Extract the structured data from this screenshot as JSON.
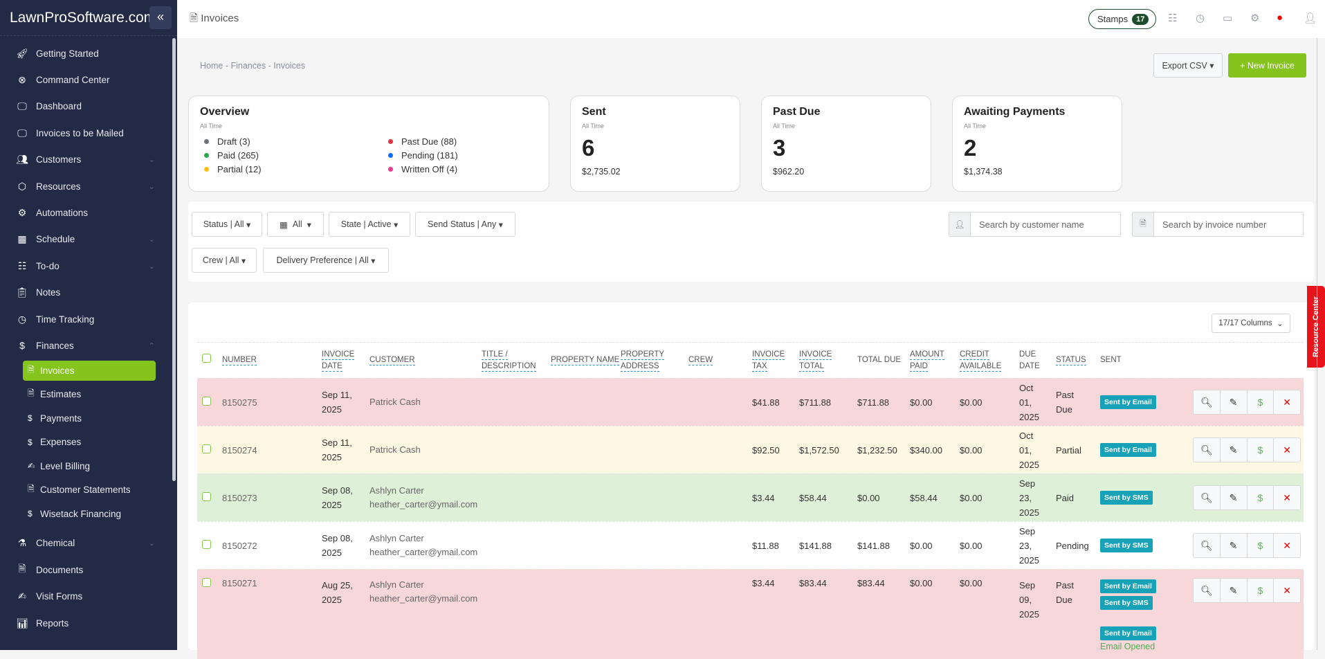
{
  "sidebar": {
    "brand": "LawnProSoftware.com",
    "items": [
      {
        "label": "Getting Started",
        "icon": "rocket-icon"
      },
      {
        "label": "Command Center",
        "icon": "lifebuoy-icon"
      },
      {
        "label": "Dashboard",
        "icon": "monitor-icon"
      },
      {
        "label": "Invoices to be Mailed",
        "icon": "monitor-icon"
      },
      {
        "label": "Customers",
        "icon": "users-icon"
      },
      {
        "label": "Resources",
        "icon": "box-icon"
      },
      {
        "label": "Automations",
        "icon": "gears-icon"
      },
      {
        "label": "Schedule",
        "icon": "calendar-icon"
      },
      {
        "label": "To-do",
        "icon": "checklist-icon"
      },
      {
        "label": "Notes",
        "icon": "clipboard-icon"
      },
      {
        "label": "Time Tracking",
        "icon": "clock-icon"
      },
      {
        "label": "Finances",
        "icon": "dollar-icon"
      }
    ],
    "finances_sub": [
      {
        "label": "Invoices",
        "icon": "invoice-icon",
        "active": true
      },
      {
        "label": "Estimates",
        "icon": "document-icon"
      },
      {
        "label": "Payments",
        "icon": "dollar-icon"
      },
      {
        "label": "Expenses",
        "icon": "dollar-icon"
      },
      {
        "label": "Level Billing",
        "icon": "signature-icon"
      },
      {
        "label": "Customer Statements",
        "icon": "document-icon"
      },
      {
        "label": "Wisetack Financing",
        "icon": "dollar-icon"
      }
    ],
    "items_after": [
      {
        "label": "Chemical",
        "icon": "flask-icon"
      },
      {
        "label": "Documents",
        "icon": "document-icon"
      },
      {
        "label": "Visit Forms",
        "icon": "signature-icon"
      },
      {
        "label": "Reports",
        "icon": "chart-icon"
      }
    ]
  },
  "topbar": {
    "title": "Invoices",
    "stamps_label": "Stamps",
    "stamps_count": "17"
  },
  "breadcrumb": "Home - Finances - Invoices",
  "actions": {
    "export": "Export CSV",
    "new_invoice": "+ New Invoice"
  },
  "overview": {
    "title": "Overview",
    "subtitle": "All Time",
    "legend": [
      {
        "label": "Draft (3)",
        "color": "#6c757d"
      },
      {
        "label": "Past Due (88)",
        "color": "#dc3545"
      },
      {
        "label": "Paid (265)",
        "color": "#28a745"
      },
      {
        "label": "Pending (181)",
        "color": "#0d6efd"
      },
      {
        "label": "Partial (12)",
        "color": "#ffc107"
      },
      {
        "label": "Written Off (4)",
        "color": "#e83e8c"
      }
    ]
  },
  "cards": [
    {
      "title": "Sent",
      "subtitle": "All Time",
      "count": "6",
      "amount": "$2,735.02"
    },
    {
      "title": "Past Due",
      "subtitle": "All Time",
      "count": "3",
      "amount": "$962.20"
    },
    {
      "title": "Awaiting Payments",
      "subtitle": "All Time",
      "count": "2",
      "amount": "$1,374.38"
    }
  ],
  "filters": {
    "status": "Status | All",
    "date": "All",
    "state": "State | Active",
    "send_status": "Send Status | Any",
    "crew": "Crew | All",
    "delivery": "Delivery Preference | All",
    "customer_placeholder": "Search by customer name",
    "invoice_placeholder": "Search by invoice number"
  },
  "table": {
    "columns_label": "17/17 Columns",
    "headers": [
      "NUMBER",
      "INVOICE DATE",
      "CUSTOMER",
      "TITLE / DESCRIPTION",
      "PROPERTY NAME",
      "PROPERTY ADDRESS",
      "CREW",
      "INVOICE TAX",
      "INVOICE TOTAL",
      "TOTAL DUE",
      "AMOUNT PAID",
      "CREDIT AVAILABLE",
      "DUE DATE",
      "STATUS",
      "SENT"
    ],
    "rows": [
      {
        "number": "8150275",
        "date": "Sep 11, 2025",
        "customer": "Patrick Cash",
        "email": "",
        "tax": "$41.88",
        "total": "$711.88",
        "due": "$711.88",
        "paid": "$0.00",
        "credit": "$0.00",
        "due_date": "Oct 01, 2025",
        "status": "Past Due",
        "sent": [
          "Sent by Email"
        ],
        "bg": "#f8d7da"
      },
      {
        "number": "8150274",
        "date": "Sep 11, 2025",
        "customer": "Patrick Cash",
        "email": "",
        "tax": "$92.50",
        "total": "$1,572.50",
        "due": "$1,232.50",
        "paid": "$340.00",
        "credit": "$0.00",
        "due_date": "Oct 01, 2025",
        "status": "Partial",
        "sent": [
          "Sent by Email"
        ],
        "bg": "#fcf8e3"
      },
      {
        "number": "8150273",
        "date": "Sep 08, 2025",
        "customer": "Ashlyn Carter",
        "email": "heather_carter@ymail.com",
        "tax": "$3.44",
        "total": "$58.44",
        "due": "$0.00",
        "paid": "$58.44",
        "credit": "$0.00",
        "due_date": "Sep 23, 2025",
        "status": "Paid",
        "sent": [
          "Sent by SMS"
        ],
        "bg": "#dff0d8"
      },
      {
        "number": "8150272",
        "date": "Sep 08, 2025",
        "customer": "Ashlyn Carter",
        "email": "heather_carter@ymail.com",
        "tax": "$11.88",
        "total": "$141.88",
        "due": "$141.88",
        "paid": "$0.00",
        "credit": "$0.00",
        "due_date": "Sep 23, 2025",
        "status": "Pending",
        "sent": [
          "Sent by SMS"
        ],
        "bg": "#ffffff"
      },
      {
        "number": "8150271",
        "date": "Aug 25, 2025",
        "customer": "Ashlyn Carter",
        "email": "heather_carter@ymail.com",
        "tax": "$3.44",
        "total": "$83.44",
        "due": "$83.44",
        "paid": "$0.00",
        "credit": "$0.00",
        "due_date": "Sep 09, 2025",
        "status": "Past Due",
        "sent": [
          "Sent by Email",
          "Sent by SMS"
        ],
        "extra_sent": "Sent by Email",
        "extra_note": "Email Opened",
        "bg": "#f8d7da"
      }
    ]
  },
  "resource_center": "Resource Center"
}
